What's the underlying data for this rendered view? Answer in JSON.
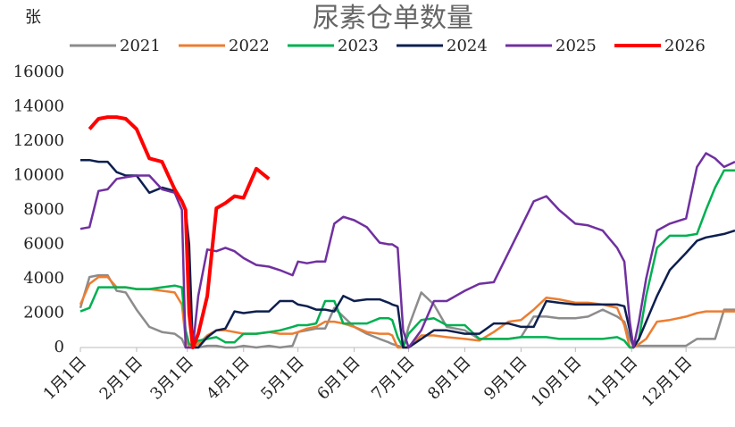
{
  "chart_data": {
    "type": "line",
    "title": "尿素仓单数量",
    "y_unit": "张",
    "x": [
      0,
      5,
      10,
      15,
      20,
      25,
      31,
      38,
      45,
      52,
      56,
      58,
      60,
      62,
      65,
      70,
      75,
      80,
      85,
      90,
      97,
      104,
      110,
      117,
      120,
      125,
      130,
      135,
      140,
      145,
      151,
      158,
      165,
      170,
      172,
      175,
      178,
      181,
      188,
      195,
      202,
      212,
      220,
      228,
      236,
      243,
      250,
      257,
      264,
      273,
      280,
      288,
      296,
      300,
      303,
      305,
      308,
      312,
      318,
      325,
      334,
      340,
      345,
      350,
      355,
      361
    ],
    "xlim": [
      0,
      361
    ],
    "xticks": [
      {
        "value": 0,
        "label": "1月1日"
      },
      {
        "value": 31,
        "label": "2月1日"
      },
      {
        "value": 59,
        "label": "3月1日"
      },
      {
        "value": 90,
        "label": "4月1日"
      },
      {
        "value": 120,
        "label": "5月1日"
      },
      {
        "value": 151,
        "label": "6月1日"
      },
      {
        "value": 181,
        "label": "7月1日"
      },
      {
        "value": 212,
        "label": "8月1日"
      },
      {
        "value": 243,
        "label": "9月1日"
      },
      {
        "value": 273,
        "label": "10月1日"
      },
      {
        "value": 304,
        "label": "11月1日"
      },
      {
        "value": 334,
        "label": "12月1日"
      }
    ],
    "ylim": [
      0,
      16000
    ],
    "yticks": [
      0,
      2000,
      4000,
      6000,
      8000,
      10000,
      12000,
      14000,
      16000
    ],
    "grid": false,
    "series": [
      {
        "name": "2021",
        "color": "#8c8c8c",
        "values": [
          2300,
          4100,
          4200,
          4200,
          3300,
          3200,
          2200,
          1200,
          900,
          800,
          500,
          0,
          0,
          0,
          0,
          100,
          100,
          0,
          0,
          100,
          0,
          100,
          0,
          100,
          900,
          1000,
          1100,
          1100,
          2300,
          1800,
          1200,
          800,
          500,
          300,
          200,
          100,
          0,
          1200,
          3200,
          2500,
          1200,
          1000,
          500,
          500,
          500,
          600,
          1800,
          1800,
          1700,
          1700,
          1800,
          2200,
          1800,
          1500,
          500,
          100,
          100,
          100,
          100,
          100,
          100,
          500,
          500,
          500,
          2200,
          2200
        ]
      },
      {
        "name": "2022",
        "color": "#ed7d31",
        "values": [
          2500,
          3700,
          4100,
          4100,
          3500,
          3500,
          3400,
          3400,
          3300,
          3200,
          2500,
          500,
          0,
          0,
          200,
          700,
          1000,
          1000,
          900,
          800,
          800,
          900,
          800,
          800,
          900,
          1100,
          1200,
          1500,
          1500,
          1400,
          1200,
          900,
          800,
          800,
          700,
          0,
          0,
          0,
          700,
          700,
          600,
          500,
          400,
          900,
          1500,
          1600,
          2200,
          2900,
          2800,
          2600,
          2600,
          2500,
          2300,
          1300,
          0,
          0,
          200,
          500,
          1500,
          1600,
          1800,
          2000,
          2100,
          2100,
          2100,
          2100
        ]
      },
      {
        "name": "2023",
        "color": "#00b050",
        "values": [
          2100,
          2300,
          3500,
          3500,
          3500,
          3500,
          3400,
          3400,
          3500,
          3600,
          3500,
          1000,
          200,
          100,
          400,
          500,
          600,
          300,
          300,
          800,
          800,
          900,
          1000,
          1200,
          1300,
          1300,
          1400,
          2700,
          2700,
          1400,
          1400,
          1400,
          1700,
          1700,
          1600,
          600,
          0,
          800,
          1600,
          1700,
          1300,
          1300,
          500,
          500,
          500,
          600,
          600,
          600,
          500,
          500,
          500,
          500,
          600,
          400,
          0,
          0,
          500,
          3000,
          5800,
          6500,
          6500,
          6600,
          8000,
          9300,
          10300,
          10300
        ]
      },
      {
        "name": "2024",
        "color": "#0d1f4f",
        "values": [
          10900,
          10900,
          10800,
          10800,
          10200,
          10000,
          10000,
          9000,
          9300,
          9100,
          8500,
          8000,
          6000,
          0,
          0,
          600,
          1000,
          1100,
          2100,
          2000,
          2100,
          2100,
          2700,
          2700,
          2500,
          2400,
          2200,
          2200,
          2100,
          3000,
          2700,
          2800,
          2800,
          2600,
          2500,
          2400,
          0,
          0,
          500,
          1000,
          1000,
          800,
          800,
          1400,
          1400,
          1200,
          1200,
          2700,
          2600,
          2500,
          2500,
          2500,
          2500,
          2400,
          1000,
          0,
          500,
          1500,
          3000,
          4500,
          5500,
          6200,
          6400,
          6500,
          6600,
          6800
        ]
      },
      {
        "name": "2025",
        "color": "#7030a0",
        "values": [
          6900,
          7000,
          9100,
          9200,
          9800,
          9900,
          10000,
          10000,
          9200,
          9000,
          8000,
          0,
          0,
          0,
          3000,
          5700,
          5600,
          5800,
          5600,
          5200,
          4800,
          4700,
          4500,
          4200,
          5000,
          4900,
          5000,
          5000,
          7200,
          7600,
          7400,
          7000,
          6100,
          6000,
          6000,
          5800,
          1000,
          0,
          1000,
          2700,
          2700,
          3300,
          3700,
          3800,
          5500,
          7000,
          8500,
          8800,
          8000,
          7200,
          7100,
          6800,
          5800,
          5000,
          1500,
          0,
          1500,
          4000,
          6800,
          7200,
          7500,
          10500,
          11300,
          11000,
          10500,
          10800
        ]
      },
      {
        "name": "2026",
        "color": "#ff0000",
        "values": [
          null,
          12700,
          13300,
          13400,
          13400,
          13300,
          12700,
          11000,
          10800,
          9200,
          8500,
          8000,
          2000,
          0,
          800,
          3000,
          8100,
          8400,
          8800,
          8700,
          10400,
          9800,
          null,
          null,
          null,
          null,
          null,
          null,
          null,
          null,
          null,
          null,
          null,
          null,
          null,
          null,
          null,
          null,
          null,
          null,
          null,
          null,
          null,
          null,
          null,
          null,
          null,
          null,
          null,
          null,
          null,
          null,
          null,
          null,
          null,
          null,
          null,
          null,
          null,
          null,
          null,
          null,
          null,
          null,
          null,
          null
        ]
      }
    ]
  }
}
